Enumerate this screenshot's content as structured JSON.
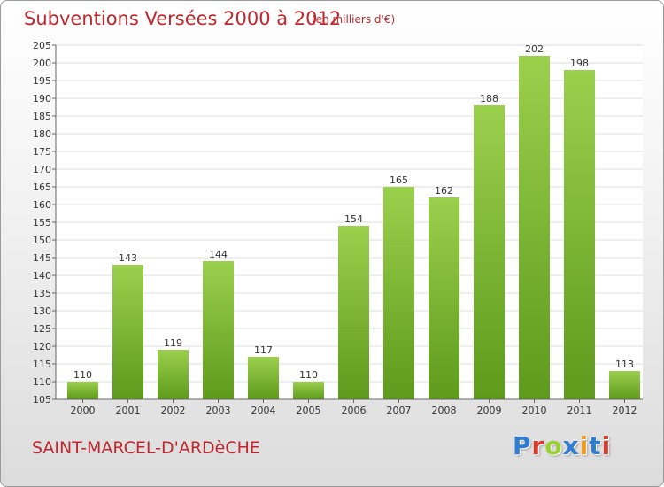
{
  "header": {
    "title": "Subventions Versées 2000 à 2012",
    "subtitle": "(en milliers d'€)"
  },
  "footer": {
    "place": "SAINT-MARCEL-D'ARDèCHE",
    "logo": "Proxiti",
    "logo_colors": [
      "#2f7cd0",
      "#d83a2a",
      "#9ccf32",
      "#2f7cd0",
      "#f29a1d",
      "#2f7cd0",
      "#d83a2a"
    ]
  },
  "colors": {
    "accent": "#c0272d",
    "bar_top": "#9bd04d",
    "bar_bottom": "#5e9a1c",
    "grid": "#dcdcdc"
  },
  "chart_data": {
    "type": "bar",
    "categories": [
      "2000",
      "2001",
      "2002",
      "2003",
      "2004",
      "2005",
      "2006",
      "2007",
      "2008",
      "2009",
      "2010",
      "2011",
      "2012"
    ],
    "values": [
      110,
      143,
      119,
      144,
      117,
      110,
      154,
      165,
      162,
      188,
      202,
      198,
      113
    ],
    "ylim": [
      105,
      205
    ],
    "yticks": [
      105,
      110,
      115,
      120,
      125,
      130,
      135,
      140,
      145,
      150,
      155,
      160,
      165,
      170,
      175,
      180,
      185,
      190,
      195,
      200,
      205
    ],
    "grid": true,
    "data_labels": true
  }
}
